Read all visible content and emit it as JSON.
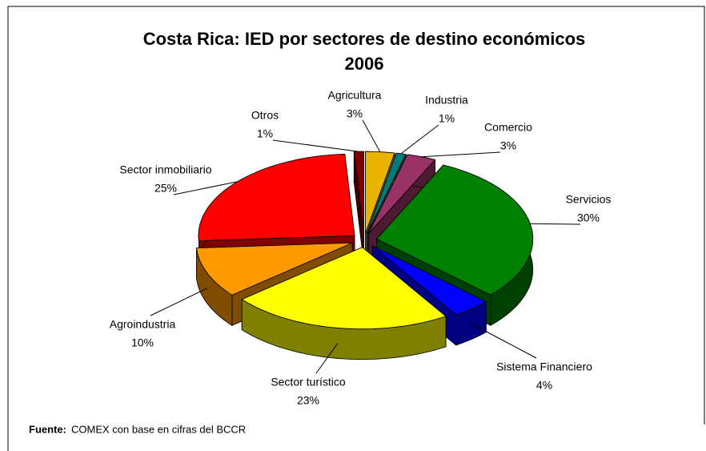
{
  "chart_data": {
    "type": "pie",
    "title": "Costa Rica: IED por sectores de destino económicos",
    "subtitle": "2006",
    "categories": [
      "Agricultura",
      "Industria",
      "Comercio",
      "Servicios",
      "Sistema Financiero",
      "Sector turístico",
      "Agroindustria",
      "Sector inmobiliario",
      "Otros"
    ],
    "values": [
      3,
      1,
      3,
      30,
      4,
      23,
      10,
      25,
      1
    ],
    "value_labels": [
      "3%",
      "1%",
      "3%",
      "30%",
      "4%",
      "23%",
      "10%",
      "25%",
      "1%"
    ],
    "colors": [
      "#e8b400",
      "#007a7a",
      "#993366",
      "#008000",
      "#0000ff",
      "#ffff00",
      "#ff9900",
      "#ff0000",
      "#800000"
    ],
    "source_label": "Fuente:",
    "source": "COMEX con base en cifras del BCCR"
  }
}
